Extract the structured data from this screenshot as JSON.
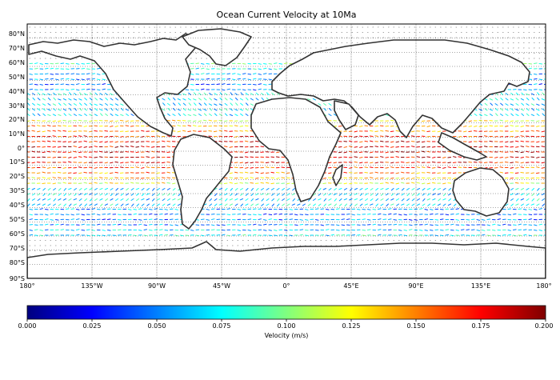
{
  "title": "Ocean Current Velocity at 10Ma",
  "lat_labels": [
    "80°N",
    "70°N",
    "60°N",
    "50°N",
    "40°N",
    "30°N",
    "20°N",
    "10°N",
    "0°",
    "10°S",
    "20°S",
    "30°S",
    "40°S",
    "50°S",
    "60°S",
    "70°S",
    "80°S",
    "90°S"
  ],
  "lon_labels": [
    "180°",
    "135°W",
    "90°W",
    "45°W",
    "0°",
    "45°E",
    "90°E",
    "135°E",
    "180°"
  ],
  "colorbar": {
    "label": "Velocity (m/s)",
    "ticks": [
      "0.000",
      "0.025",
      "0.050",
      "0.075",
      "0.100",
      "0.125",
      "0.150",
      "0.175",
      "0.200"
    ],
    "colors": [
      "#00007f",
      "#0000ff",
      "#007fff",
      "#19ffe5",
      "#7fff7f",
      "#e5ff19",
      "#ff9400",
      "#ff1d00",
      "#7f0000"
    ]
  }
}
